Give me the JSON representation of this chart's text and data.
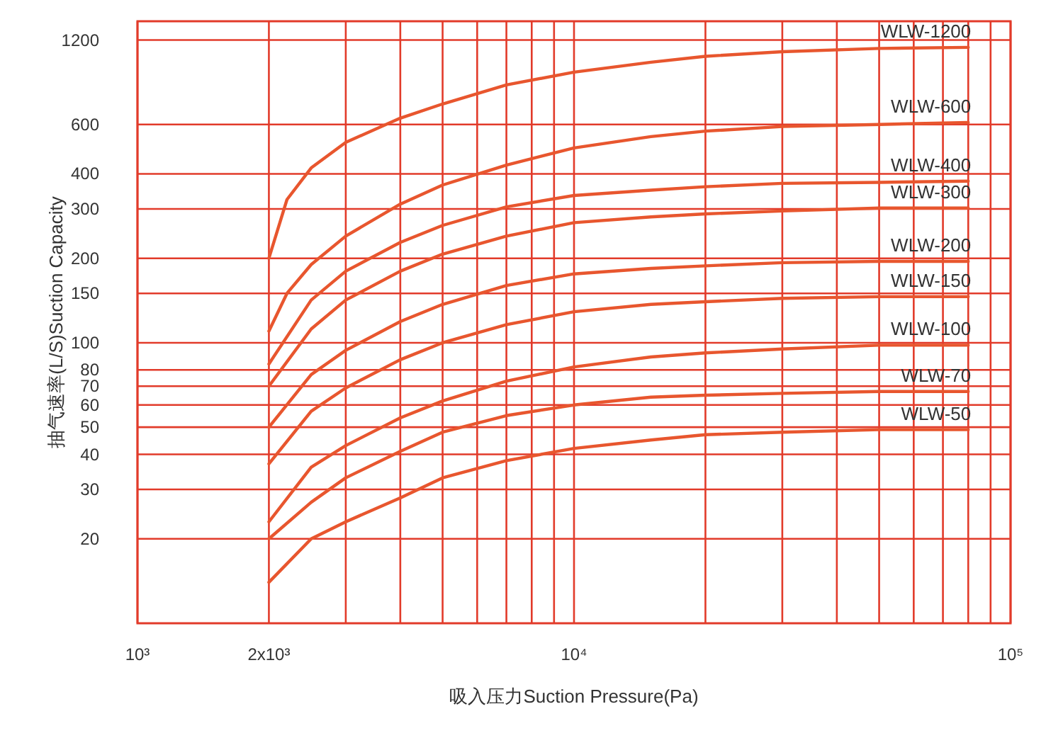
{
  "chart_data": {
    "type": "line",
    "xlabel": "吸入压力Suction Pressure(Pa)",
    "ylabel": "抽气速率(L/S)Suction Capacity",
    "log": "xy",
    "grid": true,
    "xlim": [
      1000,
      100000
    ],
    "ylim": [
      10,
      1400
    ],
    "xticks": [
      {
        "value": 1000,
        "label": "10³"
      },
      {
        "value": 2000,
        "label": "2x10³"
      },
      {
        "value": 3000,
        "label": null
      },
      {
        "value": 4000,
        "label": null
      },
      {
        "value": 5000,
        "label": null
      },
      {
        "value": 6000,
        "label": null
      },
      {
        "value": 7000,
        "label": null
      },
      {
        "value": 8000,
        "label": null
      },
      {
        "value": 9000,
        "label": null
      },
      {
        "value": 10000,
        "label": "10⁴"
      },
      {
        "value": 20000,
        "label": null
      },
      {
        "value": 30000,
        "label": null
      },
      {
        "value": 40000,
        "label": null
      },
      {
        "value": 50000,
        "label": null
      },
      {
        "value": 60000,
        "label": null
      },
      {
        "value": 70000,
        "label": null
      },
      {
        "value": 80000,
        "label": null
      },
      {
        "value": 90000,
        "label": null
      },
      {
        "value": 100000,
        "label": "10⁵"
      }
    ],
    "yticks": [
      20,
      30,
      40,
      50,
      60,
      70,
      80,
      100,
      150,
      200,
      300,
      400,
      600,
      1200
    ],
    "x": [
      2000,
      2500,
      3000,
      4000,
      5000,
      7000,
      10000,
      15000,
      20000,
      30000,
      50000,
      80000
    ],
    "series": [
      {
        "name": "WLW-1200",
        "color": "#e8562e",
        "x": [
          2000,
          2200,
          2500,
          3000,
          4000,
          5000,
          7000,
          10000,
          15000,
          20000,
          30000,
          50000,
          80000
        ],
        "values": [
          200,
          324,
          420,
          518,
          632,
          710,
          830,
          922,
          1000,
          1050,
          1090,
          1120,
          1130
        ]
      },
      {
        "name": "WLW-600",
        "color": "#e8562e",
        "x": [
          2000,
          2200,
          2500,
          3000,
          4000,
          5000,
          7000,
          10000,
          15000,
          20000,
          30000,
          50000,
          80000
        ],
        "values": [
          110,
          150,
          190,
          240,
          312,
          365,
          430,
          495,
          543,
          568,
          590,
          600,
          610
        ]
      },
      {
        "name": "WLW-400",
        "color": "#e8562e",
        "values": [
          84,
          142,
          180,
          228,
          262,
          305,
          335,
          350,
          360,
          370,
          373,
          377
        ]
      },
      {
        "name": "WLW-300",
        "color": "#e8562e",
        "values": [
          70,
          112,
          142,
          180,
          207,
          240,
          268,
          281,
          288,
          295,
          302,
          302
        ]
      },
      {
        "name": "WLW-200",
        "color": "#e8562e",
        "values": [
          50,
          77,
          94,
          119,
          137,
          160,
          176,
          184,
          188,
          193,
          195,
          195
        ]
      },
      {
        "name": "WLW-150",
        "color": "#e8562e",
        "values": [
          37,
          57,
          69,
          87,
          100,
          116,
          129,
          137,
          140,
          144,
          146,
          146
        ]
      },
      {
        "name": "WLW-100",
        "color": "#e8562e",
        "values": [
          23,
          36,
          43,
          54,
          62,
          73,
          82,
          89,
          92,
          95,
          98,
          98
        ]
      },
      {
        "name": "WLW-70",
        "color": "#e8562e",
        "values": [
          20,
          27,
          33,
          41,
          48,
          55,
          60,
          64,
          65,
          66,
          67,
          67
        ]
      },
      {
        "name": "WLW-50",
        "color": "#e8562e",
        "values": [
          14,
          20,
          23,
          28,
          33,
          38,
          42,
          45,
          47,
          48,
          49,
          49
        ]
      }
    ]
  }
}
